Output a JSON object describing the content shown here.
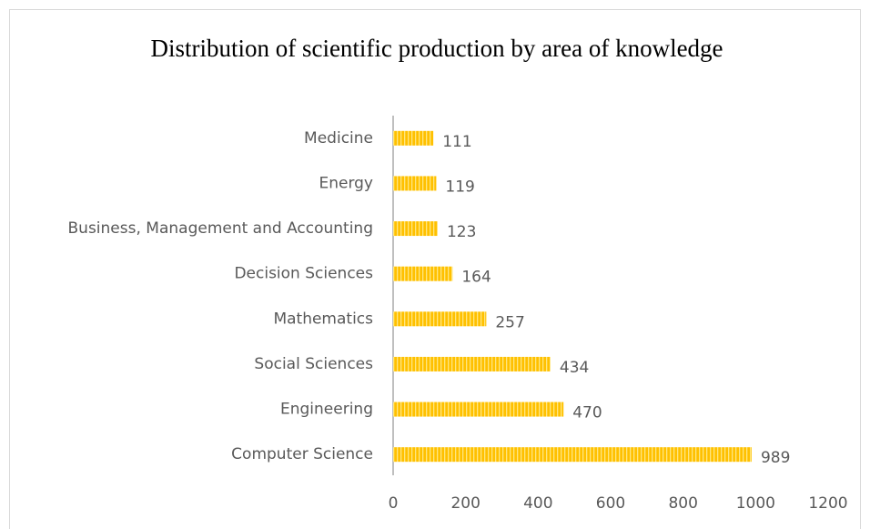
{
  "chart_data": {
    "type": "bar",
    "orientation": "horizontal",
    "title": "Distribution of scientific production by area of knowledge",
    "categories": [
      "Medicine",
      "Energy",
      "Business, Management and Accounting",
      "Decision Sciences",
      "Mathematics",
      "Social Sciences",
      "Engineering",
      "Computer Science"
    ],
    "values": [
      111,
      119,
      123,
      164,
      257,
      434,
      470,
      989
    ],
    "color": "#ffc000",
    "xlim": [
      0,
      1200
    ],
    "xticks": [
      0,
      200,
      400,
      600,
      800,
      1000,
      1200
    ],
    "grid": false
  }
}
